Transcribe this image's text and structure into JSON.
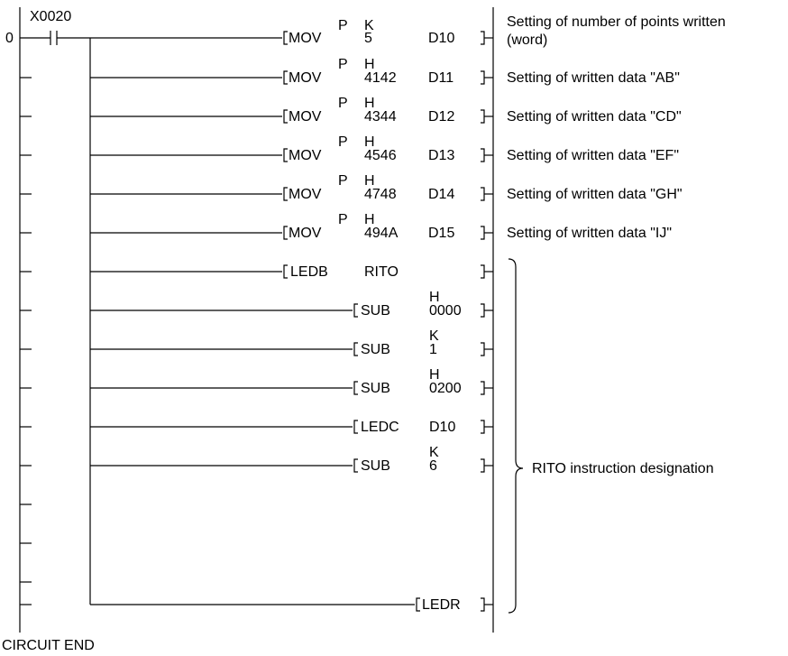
{
  "step_number": "0",
  "contact_label": "X0020",
  "circuit_end": "CIRCUIT END",
  "rows": [
    {
      "mnemonic": "MOV",
      "suffix": "P",
      "prefix": "K",
      "source": "5",
      "dest": "D10",
      "comment": "Setting of number of points written",
      "comment2": "(word)"
    },
    {
      "mnemonic": "MOV",
      "suffix": "P",
      "prefix": "H",
      "source": "4142",
      "dest": "D11",
      "comment": "Setting of written data \"AB\""
    },
    {
      "mnemonic": "MOV",
      "suffix": "P",
      "prefix": "H",
      "source": "4344",
      "dest": "D12",
      "comment": "Setting of written data \"CD\""
    },
    {
      "mnemonic": "MOV",
      "suffix": "P",
      "prefix": "H",
      "source": "4546",
      "dest": "D13",
      "comment": "Setting of written data \"EF\""
    },
    {
      "mnemonic": "MOV",
      "suffix": "P",
      "prefix": "H",
      "source": "4748",
      "dest": "D14",
      "comment": "Setting of written data \"GH\""
    },
    {
      "mnemonic": "MOV",
      "suffix": "P",
      "prefix": "H",
      "source": "494A",
      "dest": "D15",
      "comment": "Setting of written data \"IJ\""
    },
    {
      "mnemonic": "LEDB",
      "operand": "RITO"
    },
    {
      "mnemonic": "SUB",
      "prefix": "H",
      "operand": "0000"
    },
    {
      "mnemonic": "SUB",
      "prefix": "K",
      "operand": "1"
    },
    {
      "mnemonic": "SUB",
      "prefix": "H",
      "operand": "0200"
    },
    {
      "mnemonic": "LEDC",
      "operand": "D10"
    },
    {
      "mnemonic": "SUB",
      "prefix": "K",
      "operand": "6"
    },
    {
      "mnemonic": "LEDR"
    }
  ],
  "group_comment": "RITO instruction designation"
}
